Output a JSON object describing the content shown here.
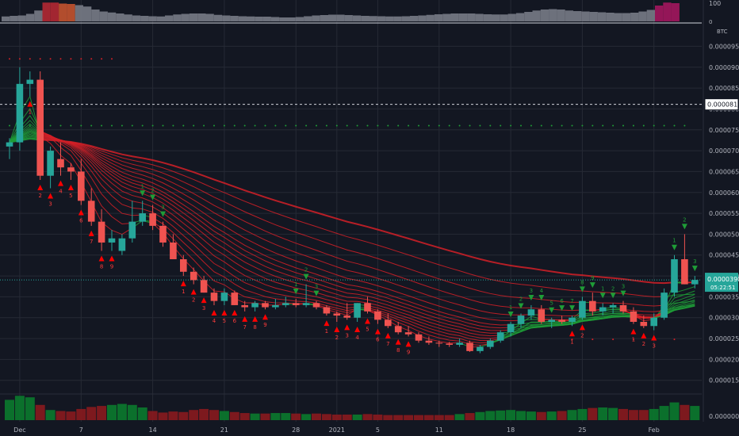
{
  "chart_data": {
    "type": "candlestick",
    "symbol_unit": "BTC",
    "top_indicator": {
      "ylabels": [
        "100",
        "0"
      ],
      "colors": {
        "gray": "#787b86",
        "red": "#b22833",
        "orange": "#c4532f",
        "magenta": "#a3165e"
      },
      "bars": [
        {
          "v": 25,
          "c": "gray"
        },
        {
          "v": 28,
          "c": "gray"
        },
        {
          "v": 30,
          "c": "gray"
        },
        {
          "v": 38,
          "c": "gray"
        },
        {
          "v": 55,
          "c": "gray"
        },
        {
          "v": 95,
          "c": "red"
        },
        {
          "v": 95,
          "c": "red"
        },
        {
          "v": 90,
          "c": "orange"
        },
        {
          "v": 88,
          "c": "orange"
        },
        {
          "v": 82,
          "c": "gray"
        },
        {
          "v": 75,
          "c": "gray"
        },
        {
          "v": 60,
          "c": "gray"
        },
        {
          "v": 50,
          "c": "gray"
        },
        {
          "v": 45,
          "c": "gray"
        },
        {
          "v": 40,
          "c": "gray"
        },
        {
          "v": 35,
          "c": "gray"
        },
        {
          "v": 30,
          "c": "gray"
        },
        {
          "v": 28,
          "c": "gray"
        },
        {
          "v": 26,
          "c": "gray"
        },
        {
          "v": 25,
          "c": "gray"
        },
        {
          "v": 30,
          "c": "gray"
        },
        {
          "v": 35,
          "c": "gray"
        },
        {
          "v": 38,
          "c": "gray"
        },
        {
          "v": 40,
          "c": "gray"
        },
        {
          "v": 40,
          "c": "gray"
        },
        {
          "v": 38,
          "c": "gray"
        },
        {
          "v": 33,
          "c": "gray"
        },
        {
          "v": 30,
          "c": "gray"
        },
        {
          "v": 28,
          "c": "gray"
        },
        {
          "v": 26,
          "c": "gray"
        },
        {
          "v": 25,
          "c": "gray"
        },
        {
          "v": 24,
          "c": "gray"
        },
        {
          "v": 24,
          "c": "gray"
        },
        {
          "v": 22,
          "c": "gray"
        },
        {
          "v": 20,
          "c": "gray"
        },
        {
          "v": 20,
          "c": "gray"
        },
        {
          "v": 22,
          "c": "gray"
        },
        {
          "v": 26,
          "c": "gray"
        },
        {
          "v": 30,
          "c": "gray"
        },
        {
          "v": 32,
          "c": "gray"
        },
        {
          "v": 34,
          "c": "gray"
        },
        {
          "v": 34,
          "c": "gray"
        },
        {
          "v": 32,
          "c": "gray"
        },
        {
          "v": 30,
          "c": "gray"
        },
        {
          "v": 28,
          "c": "gray"
        },
        {
          "v": 27,
          "c": "gray"
        },
        {
          "v": 26,
          "c": "gray"
        },
        {
          "v": 25,
          "c": "gray"
        },
        {
          "v": 25,
          "c": "gray"
        },
        {
          "v": 26,
          "c": "gray"
        },
        {
          "v": 28,
          "c": "gray"
        },
        {
          "v": 30,
          "c": "gray"
        },
        {
          "v": 33,
          "c": "gray"
        },
        {
          "v": 36,
          "c": "gray"
        },
        {
          "v": 38,
          "c": "gray"
        },
        {
          "v": 40,
          "c": "gray"
        },
        {
          "v": 40,
          "c": "gray"
        },
        {
          "v": 40,
          "c": "gray"
        },
        {
          "v": 38,
          "c": "gray"
        },
        {
          "v": 36,
          "c": "gray"
        },
        {
          "v": 35,
          "c": "gray"
        },
        {
          "v": 35,
          "c": "gray"
        },
        {
          "v": 38,
          "c": "gray"
        },
        {
          "v": 42,
          "c": "gray"
        },
        {
          "v": 48,
          "c": "gray"
        },
        {
          "v": 55,
          "c": "gray"
        },
        {
          "v": 60,
          "c": "gray"
        },
        {
          "v": 62,
          "c": "gray"
        },
        {
          "v": 60,
          "c": "gray"
        },
        {
          "v": 55,
          "c": "gray"
        },
        {
          "v": 52,
          "c": "gray"
        },
        {
          "v": 50,
          "c": "gray"
        },
        {
          "v": 48,
          "c": "gray"
        },
        {
          "v": 46,
          "c": "gray"
        },
        {
          "v": 44,
          "c": "gray"
        },
        {
          "v": 42,
          "c": "gray"
        },
        {
          "v": 42,
          "c": "gray"
        },
        {
          "v": 44,
          "c": "gray"
        },
        {
          "v": 50,
          "c": "gray"
        },
        {
          "v": 58,
          "c": "gray"
        },
        {
          "v": 80,
          "c": "magenta"
        },
        {
          "v": 95,
          "c": "magenta"
        },
        {
          "v": 92,
          "c": "magenta"
        }
      ]
    },
    "y_ticks": [
      "0.00009500",
      "0.00009000",
      "0.00008500",
      "0.00008000",
      "0.00007500",
      "0.00007000",
      "0.00006500",
      "0.00006000",
      "0.00005500",
      "0.00005000",
      "0.00004500",
      "0.00004000",
      "0.00003500",
      "0.00003000",
      "0.00002500",
      "0.00002000",
      "0.00001500"
    ],
    "y_range": [
      1.21e-05,
      0.0001004
    ],
    "price_marker": {
      "label": "0.00008110",
      "value": 8.11e-05
    },
    "current_price": {
      "label": "0.00003905",
      "value": 3.905e-05,
      "countdown": "05:22:51"
    },
    "x_ticks": [
      {
        "label": "Dec",
        "i": 1
      },
      {
        "label": "7",
        "i": 7
      },
      {
        "label": "14",
        "i": 14
      },
      {
        "label": "21",
        "i": 21
      },
      {
        "label": "28",
        "i": 28
      },
      {
        "label": "2021",
        "i": 32
      },
      {
        "label": "5",
        "i": 36
      },
      {
        "label": "11",
        "i": 42
      },
      {
        "label": "18",
        "i": 49
      },
      {
        "label": "25",
        "i": 56
      },
      {
        "label": "Feb",
        "i": 63
      }
    ],
    "candles": [
      {
        "o": 7100,
        "h": 7300,
        "l": 6800,
        "c": 7200
      },
      {
        "o": 7200,
        "h": 9000,
        "l": 7000,
        "c": 8600
      },
      {
        "o": 8600,
        "h": 8900,
        "l": 8300,
        "c": 8700
      },
      {
        "o": 8700,
        "h": 8900,
        "l": 6300,
        "c": 6400
      },
      {
        "o": 6400,
        "h": 7100,
        "l": 6100,
        "c": 7000
      },
      {
        "o": 6800,
        "h": 7200,
        "l": 6400,
        "c": 6600
      },
      {
        "o": 6600,
        "h": 6700,
        "l": 6300,
        "c": 6500
      },
      {
        "o": 6500,
        "h": 6800,
        "l": 5700,
        "c": 5800
      },
      {
        "o": 5800,
        "h": 6100,
        "l": 5200,
        "c": 5300
      },
      {
        "o": 5300,
        "h": 5600,
        "l": 4600,
        "c": 4800
      },
      {
        "o": 4800,
        "h": 5100,
        "l": 4600,
        "c": 4900
      },
      {
        "o": 4600,
        "h": 5000,
        "l": 4500,
        "c": 4900
      },
      {
        "o": 4900,
        "h": 5800,
        "l": 4800,
        "c": 5300
      },
      {
        "o": 5300,
        "h": 5800,
        "l": 5200,
        "c": 5500
      },
      {
        "o": 5500,
        "h": 5700,
        "l": 5100,
        "c": 5200
      },
      {
        "o": 5200,
        "h": 5300,
        "l": 4700,
        "c": 4800
      },
      {
        "o": 4800,
        "h": 5000,
        "l": 4400,
        "c": 4400
      },
      {
        "o": 4400,
        "h": 4500,
        "l": 4000,
        "c": 4100
      },
      {
        "o": 4100,
        "h": 4200,
        "l": 3800,
        "c": 3900
      },
      {
        "o": 3900,
        "h": 4000,
        "l": 3600,
        "c": 3600
      },
      {
        "o": 3600,
        "h": 3700,
        "l": 3300,
        "c": 3400
      },
      {
        "o": 3400,
        "h": 3700,
        "l": 3300,
        "c": 3600
      },
      {
        "o": 3600,
        "h": 3650,
        "l": 3300,
        "c": 3300
      },
      {
        "o": 3300,
        "h": 3400,
        "l": 3150,
        "c": 3250
      },
      {
        "o": 3250,
        "h": 3400,
        "l": 3150,
        "c": 3350
      },
      {
        "o": 3350,
        "h": 3400,
        "l": 3200,
        "c": 3250
      },
      {
        "o": 3250,
        "h": 3450,
        "l": 3200,
        "c": 3300
      },
      {
        "o": 3300,
        "h": 3500,
        "l": 3250,
        "c": 3350
      },
      {
        "o": 3350,
        "h": 3450,
        "l": 3250,
        "c": 3300
      },
      {
        "o": 3300,
        "h": 3800,
        "l": 3250,
        "c": 3350
      },
      {
        "o": 3350,
        "h": 3400,
        "l": 3200,
        "c": 3250
      },
      {
        "o": 3250,
        "h": 3300,
        "l": 3050,
        "c": 3100
      },
      {
        "o": 3100,
        "h": 3150,
        "l": 2900,
        "c": 3050
      },
      {
        "o": 3050,
        "h": 3350,
        "l": 2950,
        "c": 3000
      },
      {
        "o": 3000,
        "h": 3350,
        "l": 2900,
        "c": 3350
      },
      {
        "o": 3350,
        "h": 3500,
        "l": 3100,
        "c": 3150
      },
      {
        "o": 3150,
        "h": 3200,
        "l": 2850,
        "c": 2950
      },
      {
        "o": 2950,
        "h": 3100,
        "l": 2750,
        "c": 2800
      },
      {
        "o": 2800,
        "h": 2900,
        "l": 2600,
        "c": 2650
      },
      {
        "o": 2650,
        "h": 2800,
        "l": 2550,
        "c": 2600
      },
      {
        "o": 2600,
        "h": 2650,
        "l": 2400,
        "c": 2450
      },
      {
        "o": 2450,
        "h": 2550,
        "l": 2350,
        "c": 2400
      },
      {
        "o": 2400,
        "h": 2450,
        "l": 2300,
        "c": 2380
      },
      {
        "o": 2380,
        "h": 2420,
        "l": 2300,
        "c": 2350
      },
      {
        "o": 2350,
        "h": 2500,
        "l": 2300,
        "c": 2400
      },
      {
        "o": 2400,
        "h": 2450,
        "l": 2180,
        "c": 2200
      },
      {
        "o": 2200,
        "h": 2350,
        "l": 2150,
        "c": 2300
      },
      {
        "o": 2300,
        "h": 2500,
        "l": 2250,
        "c": 2450
      },
      {
        "o": 2450,
        "h": 2700,
        "l": 2400,
        "c": 2650
      },
      {
        "o": 2650,
        "h": 2900,
        "l": 2550,
        "c": 2850
      },
      {
        "o": 2850,
        "h": 3100,
        "l": 2750,
        "c": 3050
      },
      {
        "o": 3050,
        "h": 3300,
        "l": 2950,
        "c": 3200
      },
      {
        "o": 3200,
        "h": 3300,
        "l": 2850,
        "c": 2900
      },
      {
        "o": 2900,
        "h": 3000,
        "l": 2750,
        "c": 2950
      },
      {
        "o": 2950,
        "h": 3050,
        "l": 2850,
        "c": 2900
      },
      {
        "o": 2900,
        "h": 3050,
        "l": 2800,
        "c": 3000
      },
      {
        "o": 3000,
        "h": 3500,
        "l": 2950,
        "c": 3400
      },
      {
        "o": 3400,
        "h": 3600,
        "l": 3050,
        "c": 3150
      },
      {
        "o": 3150,
        "h": 3350,
        "l": 3050,
        "c": 3250
      },
      {
        "o": 3250,
        "h": 3350,
        "l": 3100,
        "c": 3300
      },
      {
        "o": 3300,
        "h": 3400,
        "l": 3100,
        "c": 3150
      },
      {
        "o": 3150,
        "h": 3250,
        "l": 2850,
        "c": 2900
      },
      {
        "o": 2900,
        "h": 3050,
        "l": 2750,
        "c": 2800
      },
      {
        "o": 2800,
        "h": 3100,
        "l": 2700,
        "c": 3000
      },
      {
        "o": 3000,
        "h": 3700,
        "l": 2950,
        "c": 3600
      },
      {
        "o": 3600,
        "h": 4500,
        "l": 3500,
        "c": 4400
      },
      {
        "o": 4400,
        "h": 5000,
        "l": 3800,
        "c": 3800
      },
      {
        "o": 3800,
        "h": 4000,
        "l": 3700,
        "c": 3905
      }
    ],
    "red_arrows": [
      {
        "i": 2,
        "t": "1"
      },
      {
        "i": 3,
        "t": "2"
      },
      {
        "i": 4,
        "t": "3"
      },
      {
        "i": 5,
        "t": "4"
      },
      {
        "i": 6,
        "t": "5"
      },
      {
        "i": 7,
        "t": "6"
      },
      {
        "i": 8,
        "t": "7"
      },
      {
        "i": 9,
        "t": "8"
      },
      {
        "i": 10,
        "t": "9"
      },
      {
        "i": 17,
        "t": "1"
      },
      {
        "i": 18,
        "t": "2"
      },
      {
        "i": 19,
        "t": "3"
      },
      {
        "i": 20,
        "t": "4"
      },
      {
        "i": 21,
        "t": "5"
      },
      {
        "i": 22,
        "t": "6"
      },
      {
        "i": 23,
        "t": "7"
      },
      {
        "i": 24,
        "t": "8"
      },
      {
        "i": 25,
        "t": "9"
      },
      {
        "i": 31,
        "t": "1"
      },
      {
        "i": 32,
        "t": "2"
      },
      {
        "i": 33,
        "t": "3"
      },
      {
        "i": 34,
        "t": "4"
      },
      {
        "i": 35,
        "t": "5"
      },
      {
        "i": 36,
        "t": "6"
      },
      {
        "i": 37,
        "t": "7"
      },
      {
        "i": 38,
        "t": "8"
      },
      {
        "i": 39,
        "t": "9"
      },
      {
        "i": 55,
        "t": "1"
      },
      {
        "i": 56,
        "t": "2"
      },
      {
        "i": 61,
        "t": "1"
      },
      {
        "i": 62,
        "t": "2"
      },
      {
        "i": 63,
        "t": "3"
      }
    ],
    "green_arrows": [
      {
        "i": 13,
        "t": "1"
      },
      {
        "i": 14,
        "t": "2"
      },
      {
        "i": 15,
        "t": "3"
      },
      {
        "i": 28,
        "t": "1"
      },
      {
        "i": 29,
        "t": "2"
      },
      {
        "i": 30,
        "t": "3"
      },
      {
        "i": 49,
        "t": "1"
      },
      {
        "i": 50,
        "t": "2"
      },
      {
        "i": 51,
        "t": "3"
      },
      {
        "i": 52,
        "t": "4"
      },
      {
        "i": 53,
        "t": "5"
      },
      {
        "i": 54,
        "t": "6"
      },
      {
        "i": 55,
        "t": "7"
      },
      {
        "i": 56,
        "t": "8"
      },
      {
        "i": 57,
        "t": "9"
      },
      {
        "i": 58,
        "t": "1"
      },
      {
        "i": 59,
        "t": "2"
      },
      {
        "i": 60,
        "t": "3"
      },
      {
        "i": 65,
        "t": "1"
      },
      {
        "i": 66,
        "t": "2"
      },
      {
        "i": 67,
        "t": "3"
      }
    ],
    "volume": {
      "ylabel": "0.00000000",
      "values": [
        40,
        48,
        45,
        30,
        20,
        18,
        17,
        22,
        26,
        28,
        30,
        32,
        30,
        25,
        18,
        15,
        17,
        16,
        20,
        22,
        20,
        18,
        16,
        14,
        13,
        13,
        14,
        14,
        13,
        12,
        13,
        12,
        11,
        11,
        11,
        12,
        11,
        10,
        10,
        10,
        10,
        10,
        10,
        10,
        12,
        14,
        16,
        18,
        19,
        20,
        18,
        17,
        16,
        17,
        18,
        20,
        22,
        24,
        25,
        24,
        22,
        20,
        20,
        22,
        28,
        35,
        30,
        28
      ],
      "up_color": "#0b7a2d",
      "down_color": "#8a1a1e"
    },
    "colors": {
      "up": "#26a69a",
      "down": "#ef5350",
      "ribbon_red": "#d32027",
      "ribbon_green": "#1f9d37",
      "grid": "#262a35",
      "bg": "#131722",
      "axis_text": "#b2b5be",
      "current_price": "#26a69a"
    }
  }
}
